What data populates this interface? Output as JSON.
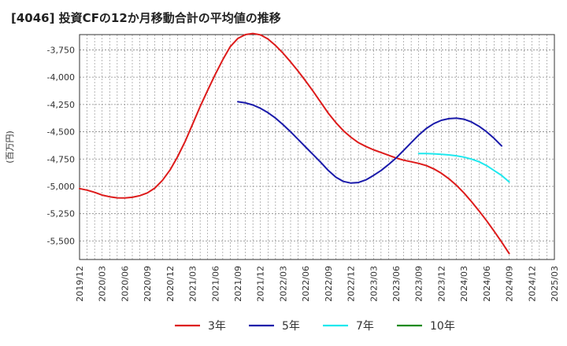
{
  "chart_data": {
    "type": "line",
    "title": "[4046]  投資CFの12か月移動合計の平均値の推移",
    "ylabel": "(百万円)",
    "xlabel": "",
    "ylim": [
      -5670,
      -3610
    ],
    "y_ticks": [
      -3750,
      -4000,
      -4250,
      -4500,
      -4750,
      -5000,
      -5250,
      -5500
    ],
    "y_tick_labels": [
      "-3,750",
      "-4,000",
      "-4,250",
      "-4,500",
      "-4,750",
      "-5,000",
      "-5,250",
      "-5,500"
    ],
    "x_ticks": [
      "2019/12",
      "2020/03",
      "2020/06",
      "2020/09",
      "2020/12",
      "2021/03",
      "2021/06",
      "2021/09",
      "2021/12",
      "2022/03",
      "2022/06",
      "2022/09",
      "2022/12",
      "2023/03",
      "2023/06",
      "2023/09",
      "2023/12",
      "2024/03",
      "2024/06",
      "2024/09",
      "2024/12",
      "2025/03"
    ],
    "grid": true,
    "legend_position": "bottom",
    "series": [
      {
        "name": "3年",
        "color": "#dd1b1b",
        "points": [
          [
            "2019/12",
            -5020
          ],
          [
            "2020/01",
            -5035
          ],
          [
            "2020/02",
            -5055
          ],
          [
            "2020/03",
            -5080
          ],
          [
            "2020/04",
            -5095
          ],
          [
            "2020/05",
            -5105
          ],
          [
            "2020/06",
            -5107
          ],
          [
            "2020/07",
            -5100
          ],
          [
            "2020/08",
            -5085
          ],
          [
            "2020/09",
            -5060
          ],
          [
            "2020/10",
            -5015
          ],
          [
            "2020/11",
            -4945
          ],
          [
            "2020/12",
            -4850
          ],
          [
            "2021/01",
            -4730
          ],
          [
            "2021/02",
            -4590
          ],
          [
            "2021/03",
            -4430
          ],
          [
            "2021/04",
            -4270
          ],
          [
            "2021/05",
            -4120
          ],
          [
            "2021/06",
            -3975
          ],
          [
            "2021/07",
            -3840
          ],
          [
            "2021/08",
            -3720
          ],
          [
            "2021/09",
            -3645
          ],
          [
            "2021/10",
            -3610
          ],
          [
            "2021/11",
            -3600
          ],
          [
            "2021/12",
            -3612
          ],
          [
            "2022/01",
            -3650
          ],
          [
            "2022/02",
            -3710
          ],
          [
            "2022/03",
            -3780
          ],
          [
            "2022/04",
            -3860
          ],
          [
            "2022/05",
            -3945
          ],
          [
            "2022/06",
            -4035
          ],
          [
            "2022/07",
            -4130
          ],
          [
            "2022/08",
            -4230
          ],
          [
            "2022/09",
            -4330
          ],
          [
            "2022/10",
            -4415
          ],
          [
            "2022/11",
            -4490
          ],
          [
            "2022/12",
            -4550
          ],
          [
            "2023/01",
            -4600
          ],
          [
            "2023/02",
            -4635
          ],
          [
            "2023/03",
            -4665
          ],
          [
            "2023/04",
            -4690
          ],
          [
            "2023/05",
            -4715
          ],
          [
            "2023/06",
            -4740
          ],
          [
            "2023/07",
            -4760
          ],
          [
            "2023/08",
            -4775
          ],
          [
            "2023/09",
            -4790
          ],
          [
            "2023/10",
            -4810
          ],
          [
            "2023/11",
            -4840
          ],
          [
            "2023/12",
            -4880
          ],
          [
            "2024/01",
            -4930
          ],
          [
            "2024/02",
            -4990
          ],
          [
            "2024/03",
            -5060
          ],
          [
            "2024/04",
            -5140
          ],
          [
            "2024/05",
            -5225
          ],
          [
            "2024/06",
            -5315
          ],
          [
            "2024/07",
            -5410
          ],
          [
            "2024/08",
            -5510
          ],
          [
            "2024/09",
            -5615
          ]
        ]
      },
      {
        "name": "5年",
        "color": "#1a1aaa",
        "points": [
          [
            "2021/09",
            -4225
          ],
          [
            "2021/10",
            -4235
          ],
          [
            "2021/11",
            -4255
          ],
          [
            "2021/12",
            -4285
          ],
          [
            "2022/01",
            -4325
          ],
          [
            "2022/02",
            -4375
          ],
          [
            "2022/03",
            -4435
          ],
          [
            "2022/04",
            -4500
          ],
          [
            "2022/05",
            -4570
          ],
          [
            "2022/06",
            -4640
          ],
          [
            "2022/07",
            -4710
          ],
          [
            "2022/08",
            -4780
          ],
          [
            "2022/09",
            -4855
          ],
          [
            "2022/10",
            -4915
          ],
          [
            "2022/11",
            -4955
          ],
          [
            "2022/12",
            -4970
          ],
          [
            "2023/01",
            -4965
          ],
          [
            "2023/02",
            -4940
          ],
          [
            "2023/03",
            -4900
          ],
          [
            "2023/04",
            -4855
          ],
          [
            "2023/05",
            -4800
          ],
          [
            "2023/06",
            -4740
          ],
          [
            "2023/07",
            -4670
          ],
          [
            "2023/08",
            -4600
          ],
          [
            "2023/09",
            -4530
          ],
          [
            "2023/10",
            -4470
          ],
          [
            "2023/11",
            -4425
          ],
          [
            "2023/12",
            -4395
          ],
          [
            "2024/01",
            -4380
          ],
          [
            "2024/02",
            -4375
          ],
          [
            "2024/03",
            -4385
          ],
          [
            "2024/04",
            -4410
          ],
          [
            "2024/05",
            -4450
          ],
          [
            "2024/06",
            -4500
          ],
          [
            "2024/07",
            -4560
          ],
          [
            "2024/08",
            -4630
          ]
        ]
      },
      {
        "name": "7年",
        "color": "#1ee8ee",
        "points": [
          [
            "2023/09",
            -4700
          ],
          [
            "2023/10",
            -4700
          ],
          [
            "2023/11",
            -4702
          ],
          [
            "2023/12",
            -4706
          ],
          [
            "2024/01",
            -4712
          ],
          [
            "2024/02",
            -4720
          ],
          [
            "2024/03",
            -4732
          ],
          [
            "2024/04",
            -4750
          ],
          [
            "2024/05",
            -4775
          ],
          [
            "2024/06",
            -4810
          ],
          [
            "2024/07",
            -4855
          ],
          [
            "2024/08",
            -4900
          ],
          [
            "2024/09",
            -4960
          ]
        ]
      },
      {
        "name": "10年",
        "color": "#1a8a1a",
        "points": []
      }
    ]
  }
}
